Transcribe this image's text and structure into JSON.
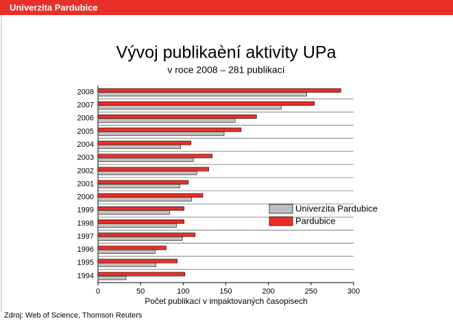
{
  "header": {
    "title": "Univerzita Pardubice"
  },
  "source": "Zdroj: Web of Science, Thomson Reuters",
  "chart_data": {
    "type": "bar",
    "orientation": "horizontal",
    "title": "Vývoj publikaèní aktivity UPa",
    "subtitle": "v roce 2008 – 281 publikací",
    "xlabel": "Počet publikací v impaktovaných časopisech",
    "categories": [
      "2008",
      "2007",
      "2006",
      "2005",
      "2004",
      "2003",
      "2002",
      "2001",
      "2000",
      "1999",
      "1998",
      "1997",
      "1996",
      "1995",
      "1994"
    ],
    "series": [
      {
        "name": "Univerzita Pardubice",
        "color": "#c0c0c0",
        "values": [
          245,
          215,
          161,
          148,
          97,
          112,
          116,
          96,
          110,
          84,
          92,
          99,
          67,
          68,
          33
        ]
      },
      {
        "name": "Pardubice",
        "color": "#e8302a",
        "values": [
          285,
          254,
          186,
          168,
          109,
          134,
          130,
          106,
          123,
          101,
          101,
          114,
          80,
          93,
          102
        ]
      }
    ],
    "xlim": [
      0,
      300
    ],
    "xticks": [
      0,
      50,
      100,
      150,
      200,
      250,
      300
    ],
    "legend": "right"
  }
}
